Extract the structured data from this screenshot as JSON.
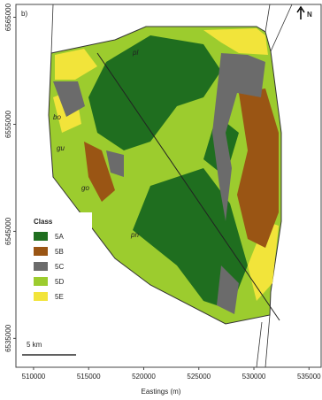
{
  "panel_label": "b)",
  "north": "N",
  "axes": {
    "x_label": "Eastings (m)",
    "xlim": [
      508400,
      536100
    ],
    "xticks": [
      510000,
      515000,
      520000,
      525000,
      530000,
      535000
    ],
    "ylim": [
      6532300,
      6566200
    ],
    "yticks": [
      6535000,
      6545000,
      6555000,
      6565000
    ]
  },
  "legend": {
    "title": "Class",
    "items": [
      {
        "label": "5A",
        "color": "#1f6e1f"
      },
      {
        "label": "5B",
        "color": "#9a5514"
      },
      {
        "label": "5C",
        "color": "#6b6b6b"
      },
      {
        "label": "5D",
        "color": "#9ccc2e"
      },
      {
        "label": "5E",
        "color": "#f2e43a"
      }
    ]
  },
  "scale_bar": "5 km",
  "region_labels": [
    "bo",
    "gu",
    "go",
    "pn",
    "pl"
  ]
}
